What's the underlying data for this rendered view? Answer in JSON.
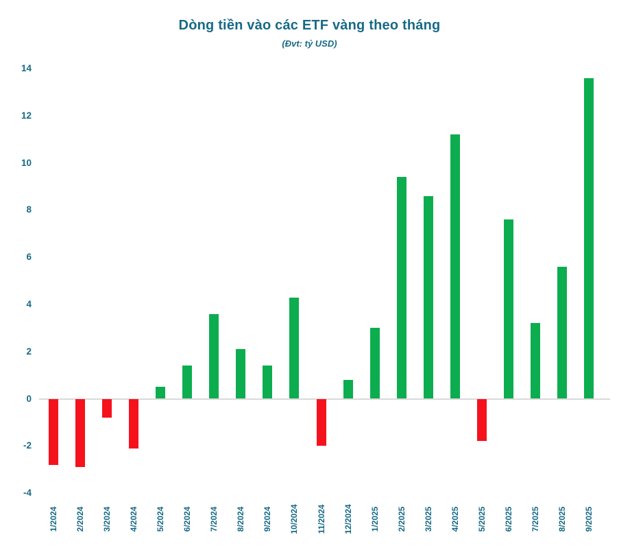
{
  "chart_data": {
    "type": "bar",
    "title": "Dòng tiền vào các ETF vàng theo tháng",
    "subtitle": "(Đvt: tỷ USD)",
    "xlabel": "",
    "ylabel": "",
    "categories": [
      "1/2024",
      "2/2024",
      "3/2024",
      "4/2024",
      "5/2024",
      "6/2024",
      "7/2024",
      "8/2024",
      "9/2024",
      "10/2024",
      "11/2024",
      "12/2024",
      "1/2025",
      "2/2025",
      "3/2025",
      "4/2025",
      "5/2025",
      "6/2025",
      "7/2025",
      "8/2025",
      "9/2025"
    ],
    "values": [
      -2.8,
      -2.9,
      -0.8,
      -2.1,
      0.5,
      1.4,
      3.6,
      2.1,
      1.4,
      4.3,
      -2.0,
      0.8,
      3.0,
      9.4,
      8.6,
      11.2,
      -1.8,
      7.6,
      3.2,
      5.6,
      13.6
    ],
    "yticks": [
      14,
      12,
      10,
      8,
      6,
      4,
      2,
      0,
      -2,
      -4
    ],
    "ylim": [
      -4,
      14
    ],
    "grid": false,
    "legend": "none",
    "colors": {
      "positive": "#0cad4f",
      "negative": "#f5121d",
      "axis_text": "#176a86",
      "zero_line": "#d9d9d9",
      "background": "#ffffff"
    }
  }
}
